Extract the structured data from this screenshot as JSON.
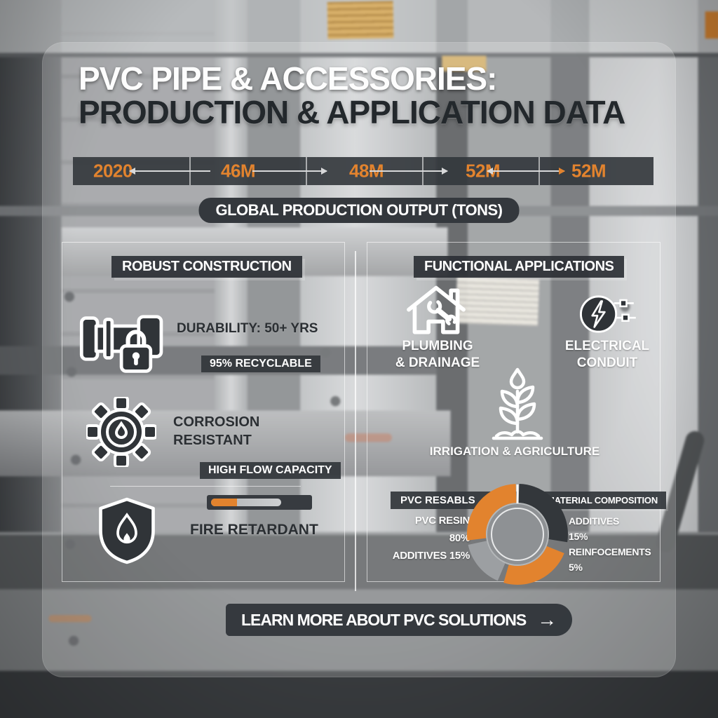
{
  "title": {
    "line1": "PVC PIPE & ACCESSORIES:",
    "line2": "PRODUCTION & APPLICATION DATA"
  },
  "timeline": {
    "values": [
      "2020",
      "46M",
      "48M",
      "52M",
      "52M"
    ],
    "caption": "GLOBAL PRODUCTION OUTPUT (TONS)"
  },
  "robust_panel": {
    "heading": "ROBUST CONSTRUCTION",
    "durability_label": "DURABILITY: 50+ YRS",
    "recyclable_badge": "95% RECYCLABLE",
    "corrosion_line1": "CORROSION",
    "corrosion_line2": "RESISTANT",
    "flow_badge": "HIGH FLOW CAPACITY",
    "fire_label": "FIRE RETARDANT",
    "fire_progress_percent": 37
  },
  "applications_panel": {
    "heading": "FUNCTIONAL APPLICATIONS",
    "plumbing_line1": "PLUMBING",
    "plumbing_line2": "& DRAINAGE",
    "electrical_line1": "ELECTRICAL",
    "electrical_line2": "CONDUIT",
    "irrigation_label": "IRRIGATION & AGRICULTURE",
    "composition": {
      "left_badge": "PVC RESABLS",
      "right_badge": "MATERIAL COMPOSITION",
      "left_lines": [
        "PVC RESIN",
        "80%",
        "ADDITIVES 15%"
      ],
      "right_lines": [
        "ADDITIVES",
        "15%",
        "REINFOCEMENTS",
        "5%"
      ]
    }
  },
  "cta": {
    "label": "LEARN MORE ABOUT PVC SOLUTIONS",
    "arrow": "→"
  },
  "colors": {
    "accent_orange": "#E2832E",
    "badge_dark": "#34383D",
    "donut_orange": "#E2832E",
    "donut_gray": "#9C9FA2",
    "donut_dark": "#33373B",
    "panel_border": "rgba(255,255,255,0.6)"
  },
  "chart_data": [
    {
      "type": "pie",
      "title": "MATERIAL COMPOSITION",
      "labels": [
        "PVC RESIN",
        "ADDITIVES",
        "REINFOCEMENTS"
      ],
      "values": [
        80,
        15,
        5
      ],
      "colors": [
        "#E2832E",
        "#9C9FA2",
        "#33373B"
      ],
      "style": "donut",
      "legend_position": "both-sides"
    },
    {
      "type": "table",
      "title": "GLOBAL PRODUCTION OUTPUT (TONS)",
      "categories": [
        "2020",
        "",
        "",
        "",
        ""
      ],
      "values": [
        "2020",
        "46M",
        "48M",
        "52M",
        "52M"
      ]
    },
    {
      "type": "bar",
      "title": "FIRE RETARDANT progress bar",
      "categories": [
        "progress"
      ],
      "values": [
        37
      ],
      "ylim": [
        0,
        100
      ]
    }
  ]
}
